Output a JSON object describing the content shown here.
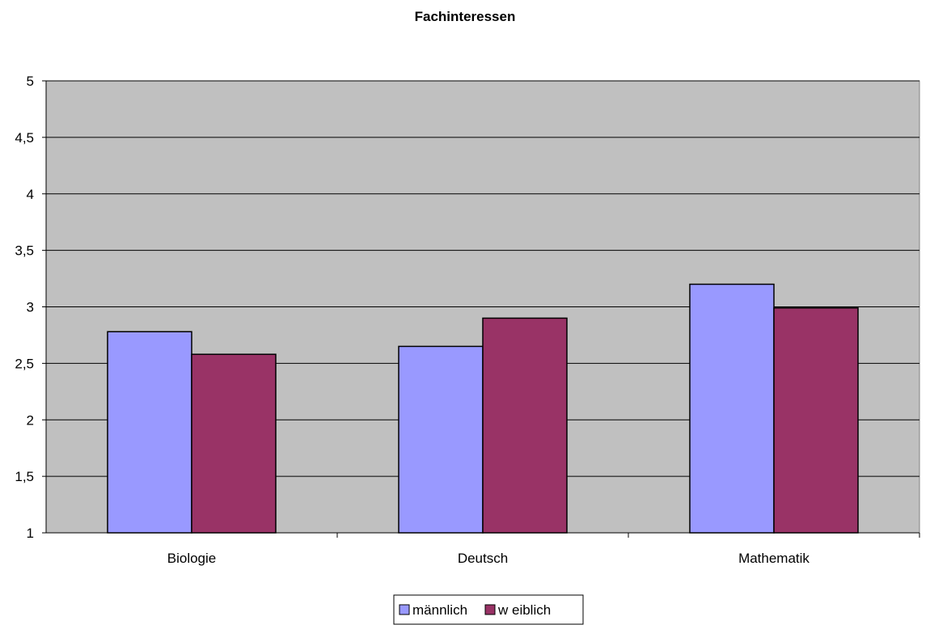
{
  "chart_data": {
    "type": "bar",
    "title": "Fachinteressen",
    "xlabel": "",
    "ylabel": "",
    "categories": [
      "Biologie",
      "Deutsch",
      "Mathematik"
    ],
    "series": [
      {
        "name": "männlich",
        "values": [
          2.78,
          2.65,
          3.2
        ],
        "color": "#9999ff"
      },
      {
        "name": "w eiblich",
        "values": [
          2.58,
          2.9,
          2.99
        ],
        "color": "#993366"
      }
    ],
    "ylim": [
      1,
      5
    ],
    "yticks": [
      "1",
      "1,5",
      "2",
      "2,5",
      "3",
      "3,5",
      "4",
      "4,5",
      "5"
    ],
    "grid": true,
    "plot_background": "#c0c0c0",
    "legend_position": "bottom"
  }
}
